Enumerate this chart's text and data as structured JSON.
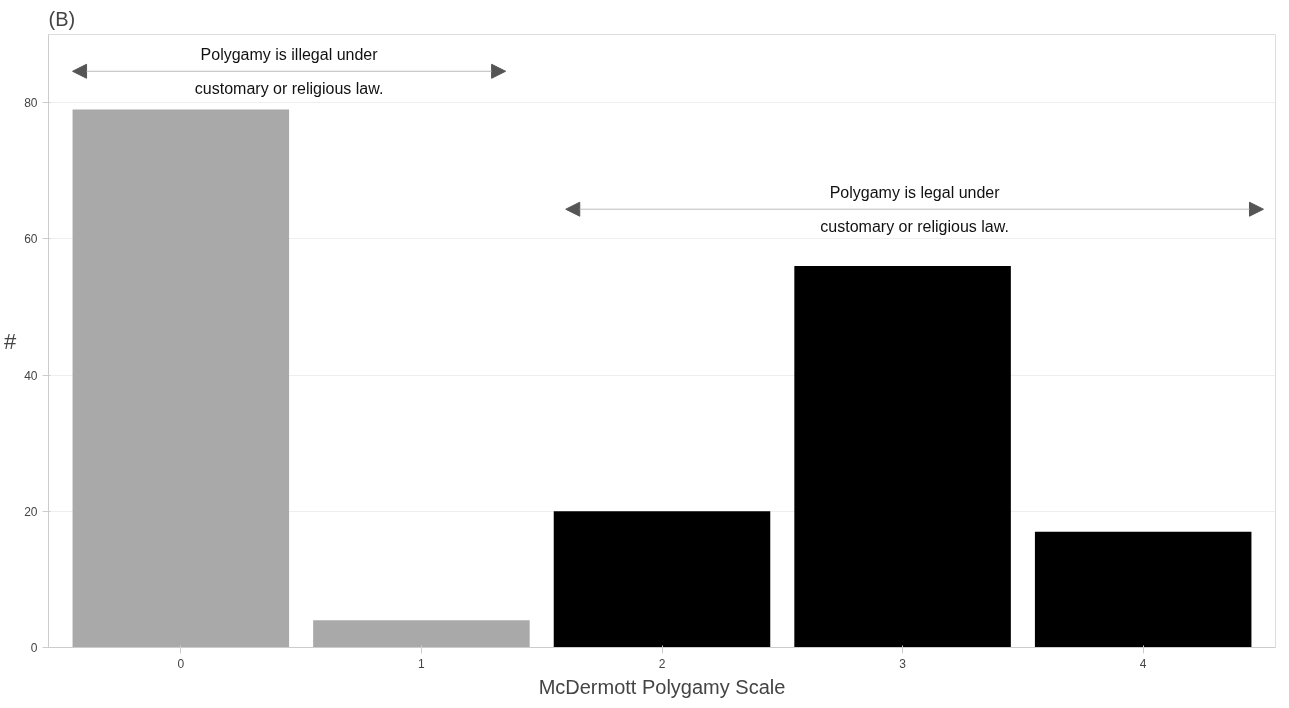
{
  "chart_data": {
    "type": "bar",
    "title": "(B)",
    "xlabel": "McDermott Polygamy Scale",
    "ylabel": "#",
    "categories": [
      "0",
      "1",
      "2",
      "3",
      "4"
    ],
    "values": [
      79,
      4,
      20,
      56,
      17
    ],
    "colors": [
      "#a9a9a9",
      "#a9a9a9",
      "#000000",
      "#000000",
      "#000000"
    ],
    "ylim": [
      0,
      90
    ],
    "yticks": [
      0,
      20,
      40,
      60,
      80
    ],
    "grid": "y",
    "annotations": [
      "Polygamy is illegal under\ncustomary or religious law.",
      "Polygamy is legal under\ncustomary or religious law."
    ]
  }
}
